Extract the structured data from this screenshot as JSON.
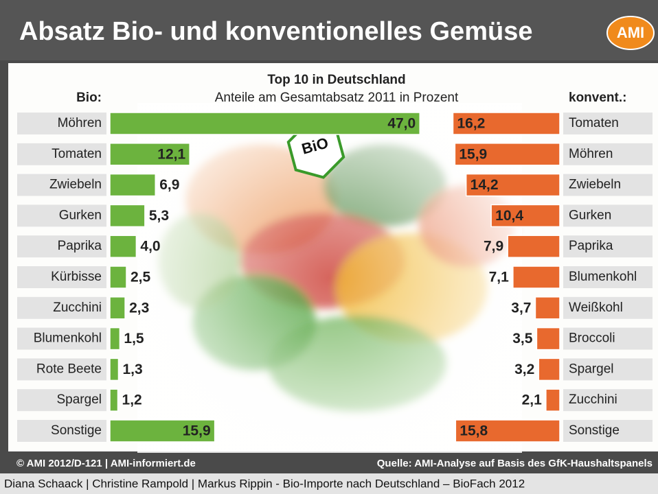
{
  "header": {
    "title": "Absatz Bio- und konventionelles Gemüse",
    "logo": "AMI"
  },
  "heading": "Top 10 in Deutschland",
  "subheading": "Anteile am Gesamtabsatz 2011 in Prozent",
  "badge": "BiO",
  "chart_data": [
    {
      "type": "bar",
      "title": "Bio:",
      "color": "#6cb33e",
      "categories": [
        "Möhren",
        "Tomaten",
        "Zwiebeln",
        "Gurken",
        "Paprika",
        "Kürbisse",
        "Zucchini",
        "Blumenkohl",
        "Rote Beete",
        "Spargel",
        "Sonstige"
      ],
      "values": [
        47.0,
        12.1,
        6.9,
        5.3,
        4.0,
        2.5,
        2.3,
        1.5,
        1.3,
        1.2,
        15.9
      ],
      "value_labels": [
        "47,0",
        "12,1",
        "6,9",
        "5,3",
        "4,0",
        "2,5",
        "2,3",
        "1,5",
        "1,3",
        "1,2",
        "15,9"
      ]
    },
    {
      "type": "bar",
      "title": "konvent.:",
      "color": "#e8692e",
      "categories": [
        "Tomaten",
        "Möhren",
        "Zwiebeln",
        "Gurken",
        "Paprika",
        "Blumenkohl",
        "Weißkohl",
        "Broccoli",
        "Spargel",
        "Zucchini",
        "Sonstige"
      ],
      "values": [
        16.2,
        15.9,
        14.2,
        10.4,
        7.9,
        7.1,
        3.7,
        3.5,
        3.2,
        2.1,
        15.8
      ],
      "value_labels": [
        "16,2",
        "15,9",
        "14,2",
        "10,4",
        "7,9",
        "7,1",
        "3,7",
        "3,5",
        "3,2",
        "2,1",
        "15,8"
      ]
    }
  ],
  "footer": {
    "left": "© AMI 2012/D-121 | AMI-informiert.de",
    "right": "Quelle: AMI-Analyse auf Basis des GfK-Haushaltspanels"
  },
  "caption": "Diana Schaack | Christine Rampold | Markus Rippin - Bio-Importe nach Deutschland – BioFach 2012"
}
